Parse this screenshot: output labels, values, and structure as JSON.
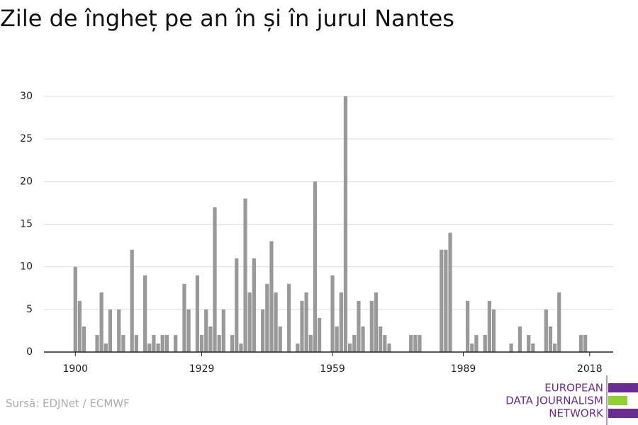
{
  "chart_data": {
    "type": "bar",
    "title": "Zile de îngheț pe an în și în jurul Nantes",
    "source": "Sursă: EDJNet / ECMWF",
    "logo": [
      "EUROPEAN",
      "DATA JOURNALISM",
      "NETWORK"
    ],
    "color": "#999999",
    "x": [
      1900,
      1901,
      1902,
      1903,
      1904,
      1905,
      1906,
      1907,
      1908,
      1909,
      1910,
      1911,
      1912,
      1913,
      1914,
      1915,
      1916,
      1917,
      1918,
      1919,
      1920,
      1921,
      1922,
      1923,
      1924,
      1925,
      1926,
      1927,
      1928,
      1929,
      1930,
      1931,
      1932,
      1933,
      1934,
      1935,
      1936,
      1937,
      1938,
      1939,
      1940,
      1941,
      1942,
      1943,
      1944,
      1945,
      1946,
      1947,
      1948,
      1949,
      1950,
      1951,
      1952,
      1953,
      1954,
      1955,
      1956,
      1957,
      1958,
      1959,
      1960,
      1961,
      1962,
      1963,
      1964,
      1965,
      1966,
      1967,
      1968,
      1969,
      1970,
      1971,
      1972,
      1973,
      1974,
      1975,
      1976,
      1977,
      1978,
      1979,
      1980,
      1981,
      1982,
      1983,
      1984,
      1985,
      1986,
      1987,
      1988,
      1989,
      1990,
      1991,
      1992,
      1993,
      1994,
      1995,
      1996,
      1997,
      1998,
      1999,
      2000,
      2001,
      2002,
      2003,
      2004,
      2005,
      2006,
      2007,
      2008,
      2009,
      2010,
      2011,
      2012,
      2013,
      2014,
      2015,
      2016,
      2017
    ],
    "values": [
      10,
      6,
      3,
      0,
      0,
      2,
      7,
      1,
      5,
      0,
      5,
      2,
      0,
      12,
      2,
      0,
      9,
      1,
      2,
      1,
      2,
      2,
      0,
      2,
      0,
      8,
      5,
      0,
      9,
      2,
      5,
      3,
      17,
      2,
      5,
      0,
      2,
      11,
      1,
      18,
      7,
      11,
      0,
      5,
      8,
      13,
      7,
      3,
      0,
      8,
      0,
      1,
      6,
      7,
      2,
      20,
      4,
      0,
      0,
      9,
      3,
      7,
      30,
      1,
      2,
      6,
      3,
      0,
      6,
      7,
      3,
      2,
      1,
      0,
      0,
      0,
      0,
      2,
      2,
      2,
      0,
      0,
      0,
      0,
      12,
      12,
      14,
      0,
      0,
      0,
      6,
      1,
      2,
      0,
      2,
      6,
      5,
      0,
      0,
      0,
      1,
      0,
      3,
      0,
      2,
      1,
      0,
      0,
      5,
      3,
      1,
      7,
      0,
      0,
      0,
      0,
      2,
      2
    ],
    "xlim": [
      1892.8,
      2023.4
    ],
    "xticks": [
      1900,
      1929,
      1959,
      1989,
      2018
    ],
    "ylim": [
      0,
      30
    ],
    "yticks": [
      0,
      5,
      10,
      15,
      20,
      25,
      30
    ],
    "grid": true
  }
}
